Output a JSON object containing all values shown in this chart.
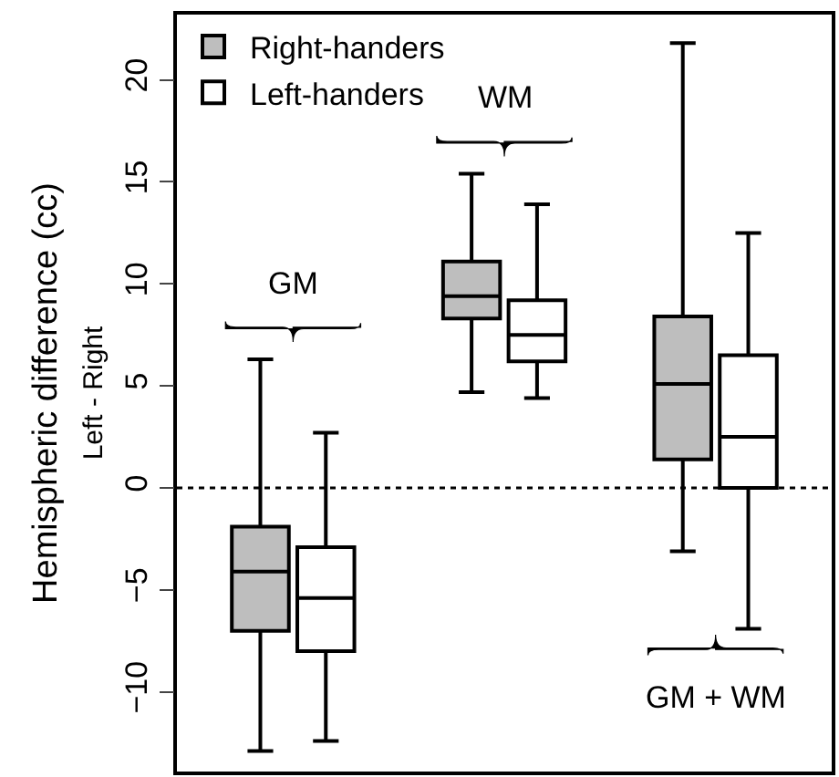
{
  "chart_data": {
    "type": "box",
    "ylabel": "Hemispheric difference (cc)\nLeft - Right",
    "categories": [
      null,
      null,
      null
    ],
    "series": [
      {
        "name": "Right-handers",
        "color": "#bebebe",
        "boxes": [
          {
            "low": -12.9,
            "q1": -7.0,
            "median": -4.1,
            "q3": -1.9,
            "high": 6.3
          },
          {
            "low": 4.7,
            "q1": 8.3,
            "median": 9.4,
            "q3": 11.1,
            "high": 15.4
          },
          {
            "low": -3.1,
            "q1": 1.4,
            "median": 5.1,
            "q3": 8.4,
            "high": 21.8
          }
        ]
      },
      {
        "name": "Left-handers",
        "color": "#ffffff",
        "boxes": [
          {
            "low": -12.4,
            "q1": -8.0,
            "median": -5.4,
            "q3": -2.9,
            "high": 2.7
          },
          {
            "low": 4.4,
            "q1": 6.2,
            "median": 7.5,
            "q3": 9.2,
            "high": 13.9
          },
          {
            "low": -6.9,
            "q1": 0.0,
            "median": 2.5,
            "q3": 6.5,
            "high": 12.5
          }
        ]
      }
    ],
    "annotations": [
      "GM",
      "WM",
      "GM + WM"
    ],
    "ref_lines": [
      {
        "axis": "y",
        "value": 0,
        "line_style": "dotted",
        "color": "#000000"
      }
    ],
    "ylim": [
      -13.9,
      23.2
    ],
    "yticks": [
      -10,
      -5,
      0,
      5,
      10,
      15,
      20
    ],
    "legend": "top left",
    "tick_labels": "y"
  }
}
